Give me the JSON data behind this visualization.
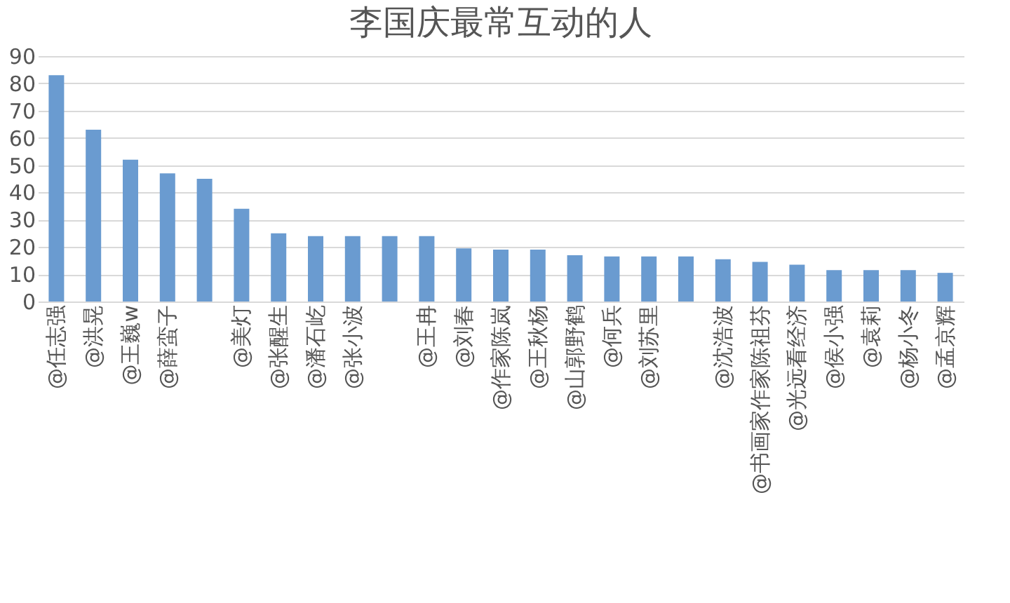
{
  "chart_data": {
    "type": "bar",
    "title": "李国庆最常互动的人",
    "categories": [
      "@任志强",
      "@洪晃",
      "@王巍w",
      "@薛蛮子",
      null,
      "@美灯",
      "@张醒生",
      "@潘石屹",
      "@张小波",
      null,
      "@王冉",
      "@刘春",
      "@作家陈岚",
      "@王秋杨",
      "@山郭野鹤",
      "@何兵",
      "@刘苏里",
      null,
      "@沈浩波",
      "@书画家作家陈祖芬",
      "@光远看经济",
      "@侯小强",
      "@袁莉",
      "@杨小冬",
      "@孟京辉"
    ],
    "values": [
      83,
      63,
      52,
      47,
      45,
      34,
      25,
      24,
      24,
      24,
      24,
      19.5,
      19,
      19,
      17,
      16.5,
      16.5,
      16.5,
      15.5,
      14.5,
      13.5,
      11.5,
      11.5,
      11.5,
      10.5
    ],
    "color": "#6a9bd0",
    "ylim": [
      0,
      90
    ],
    "yticks": [
      0,
      10,
      20,
      30,
      40,
      50,
      60,
      70,
      80,
      90
    ],
    "grid": "y"
  }
}
